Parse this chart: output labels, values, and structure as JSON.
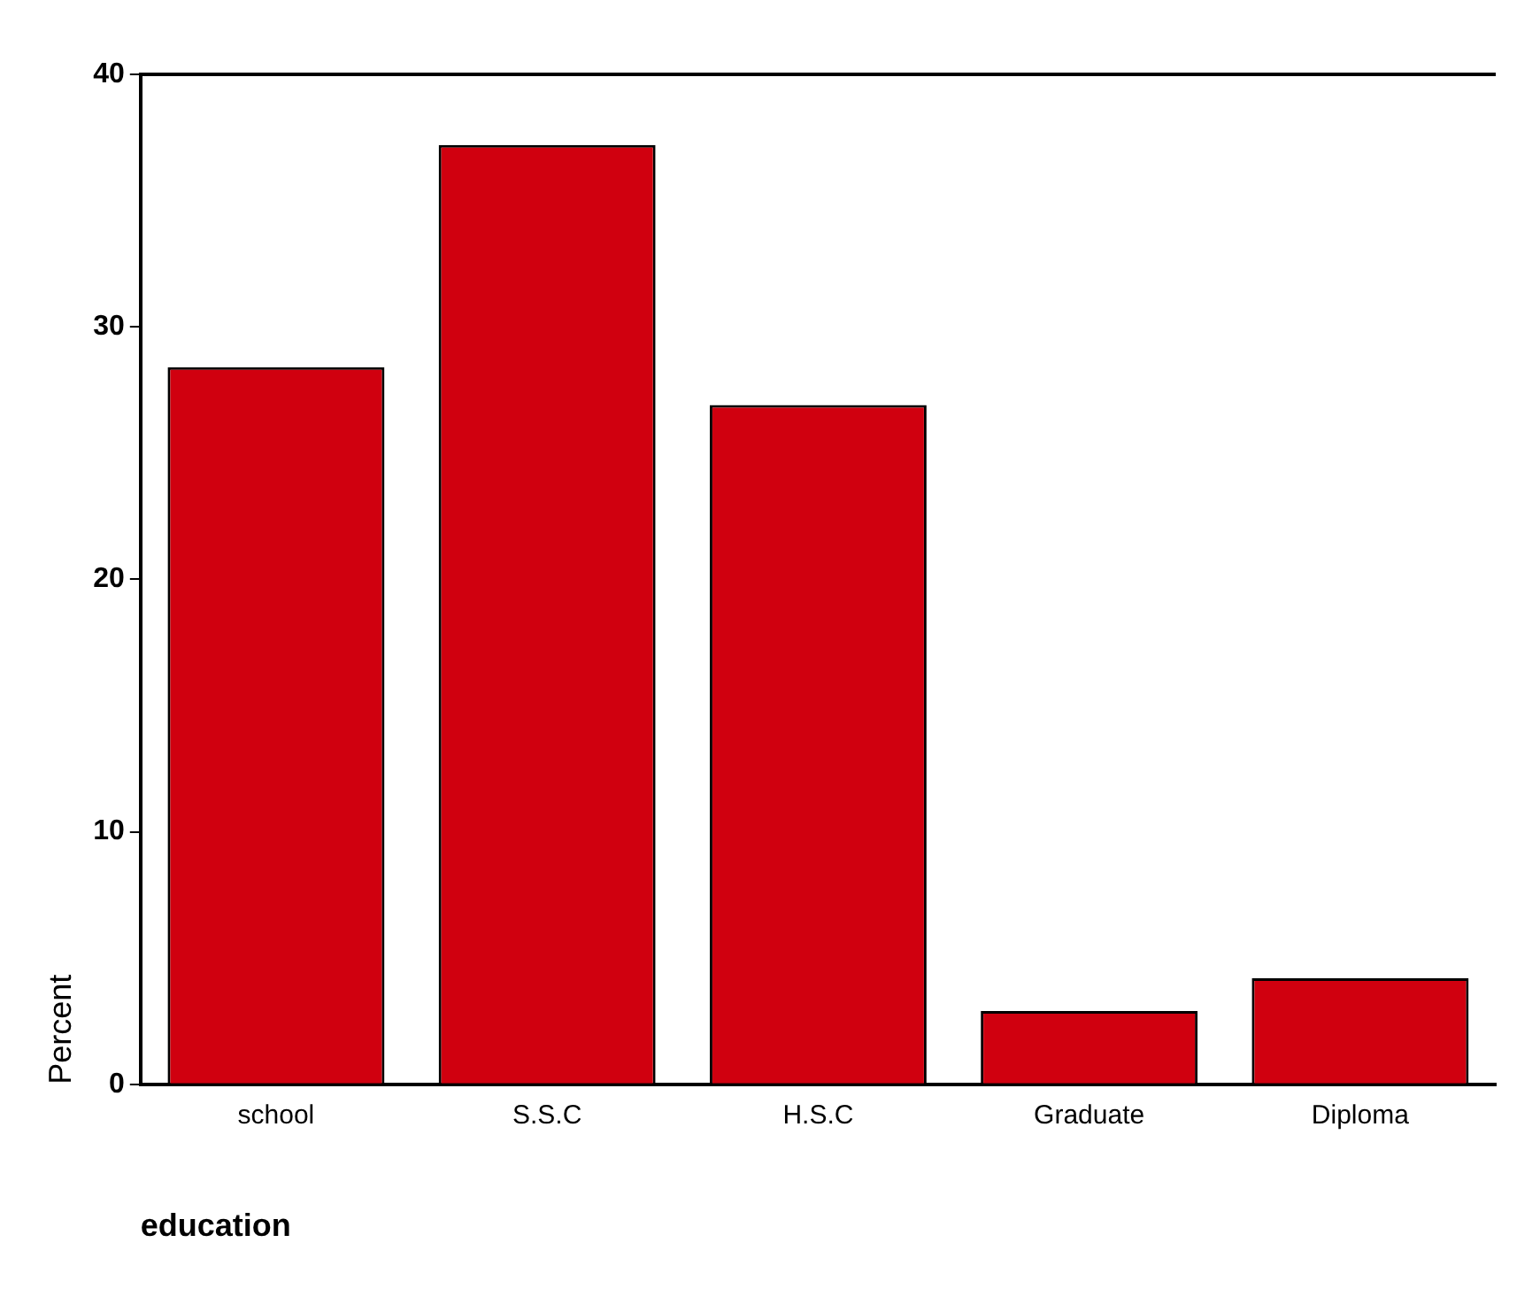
{
  "chart_data": {
    "type": "bar",
    "categories": [
      "school",
      "S.S.C",
      "H.S.C",
      "Graduate",
      "Diploma"
    ],
    "values": [
      28.4,
      37.2,
      26.9,
      2.9,
      4.2
    ],
    "color": "#d0000f",
    "ylabel": "Percent",
    "xlabel": "education",
    "ylim": [
      0,
      40
    ],
    "yticks": [
      0,
      10,
      20,
      30,
      40
    ],
    "grid": false,
    "legend": false
  }
}
